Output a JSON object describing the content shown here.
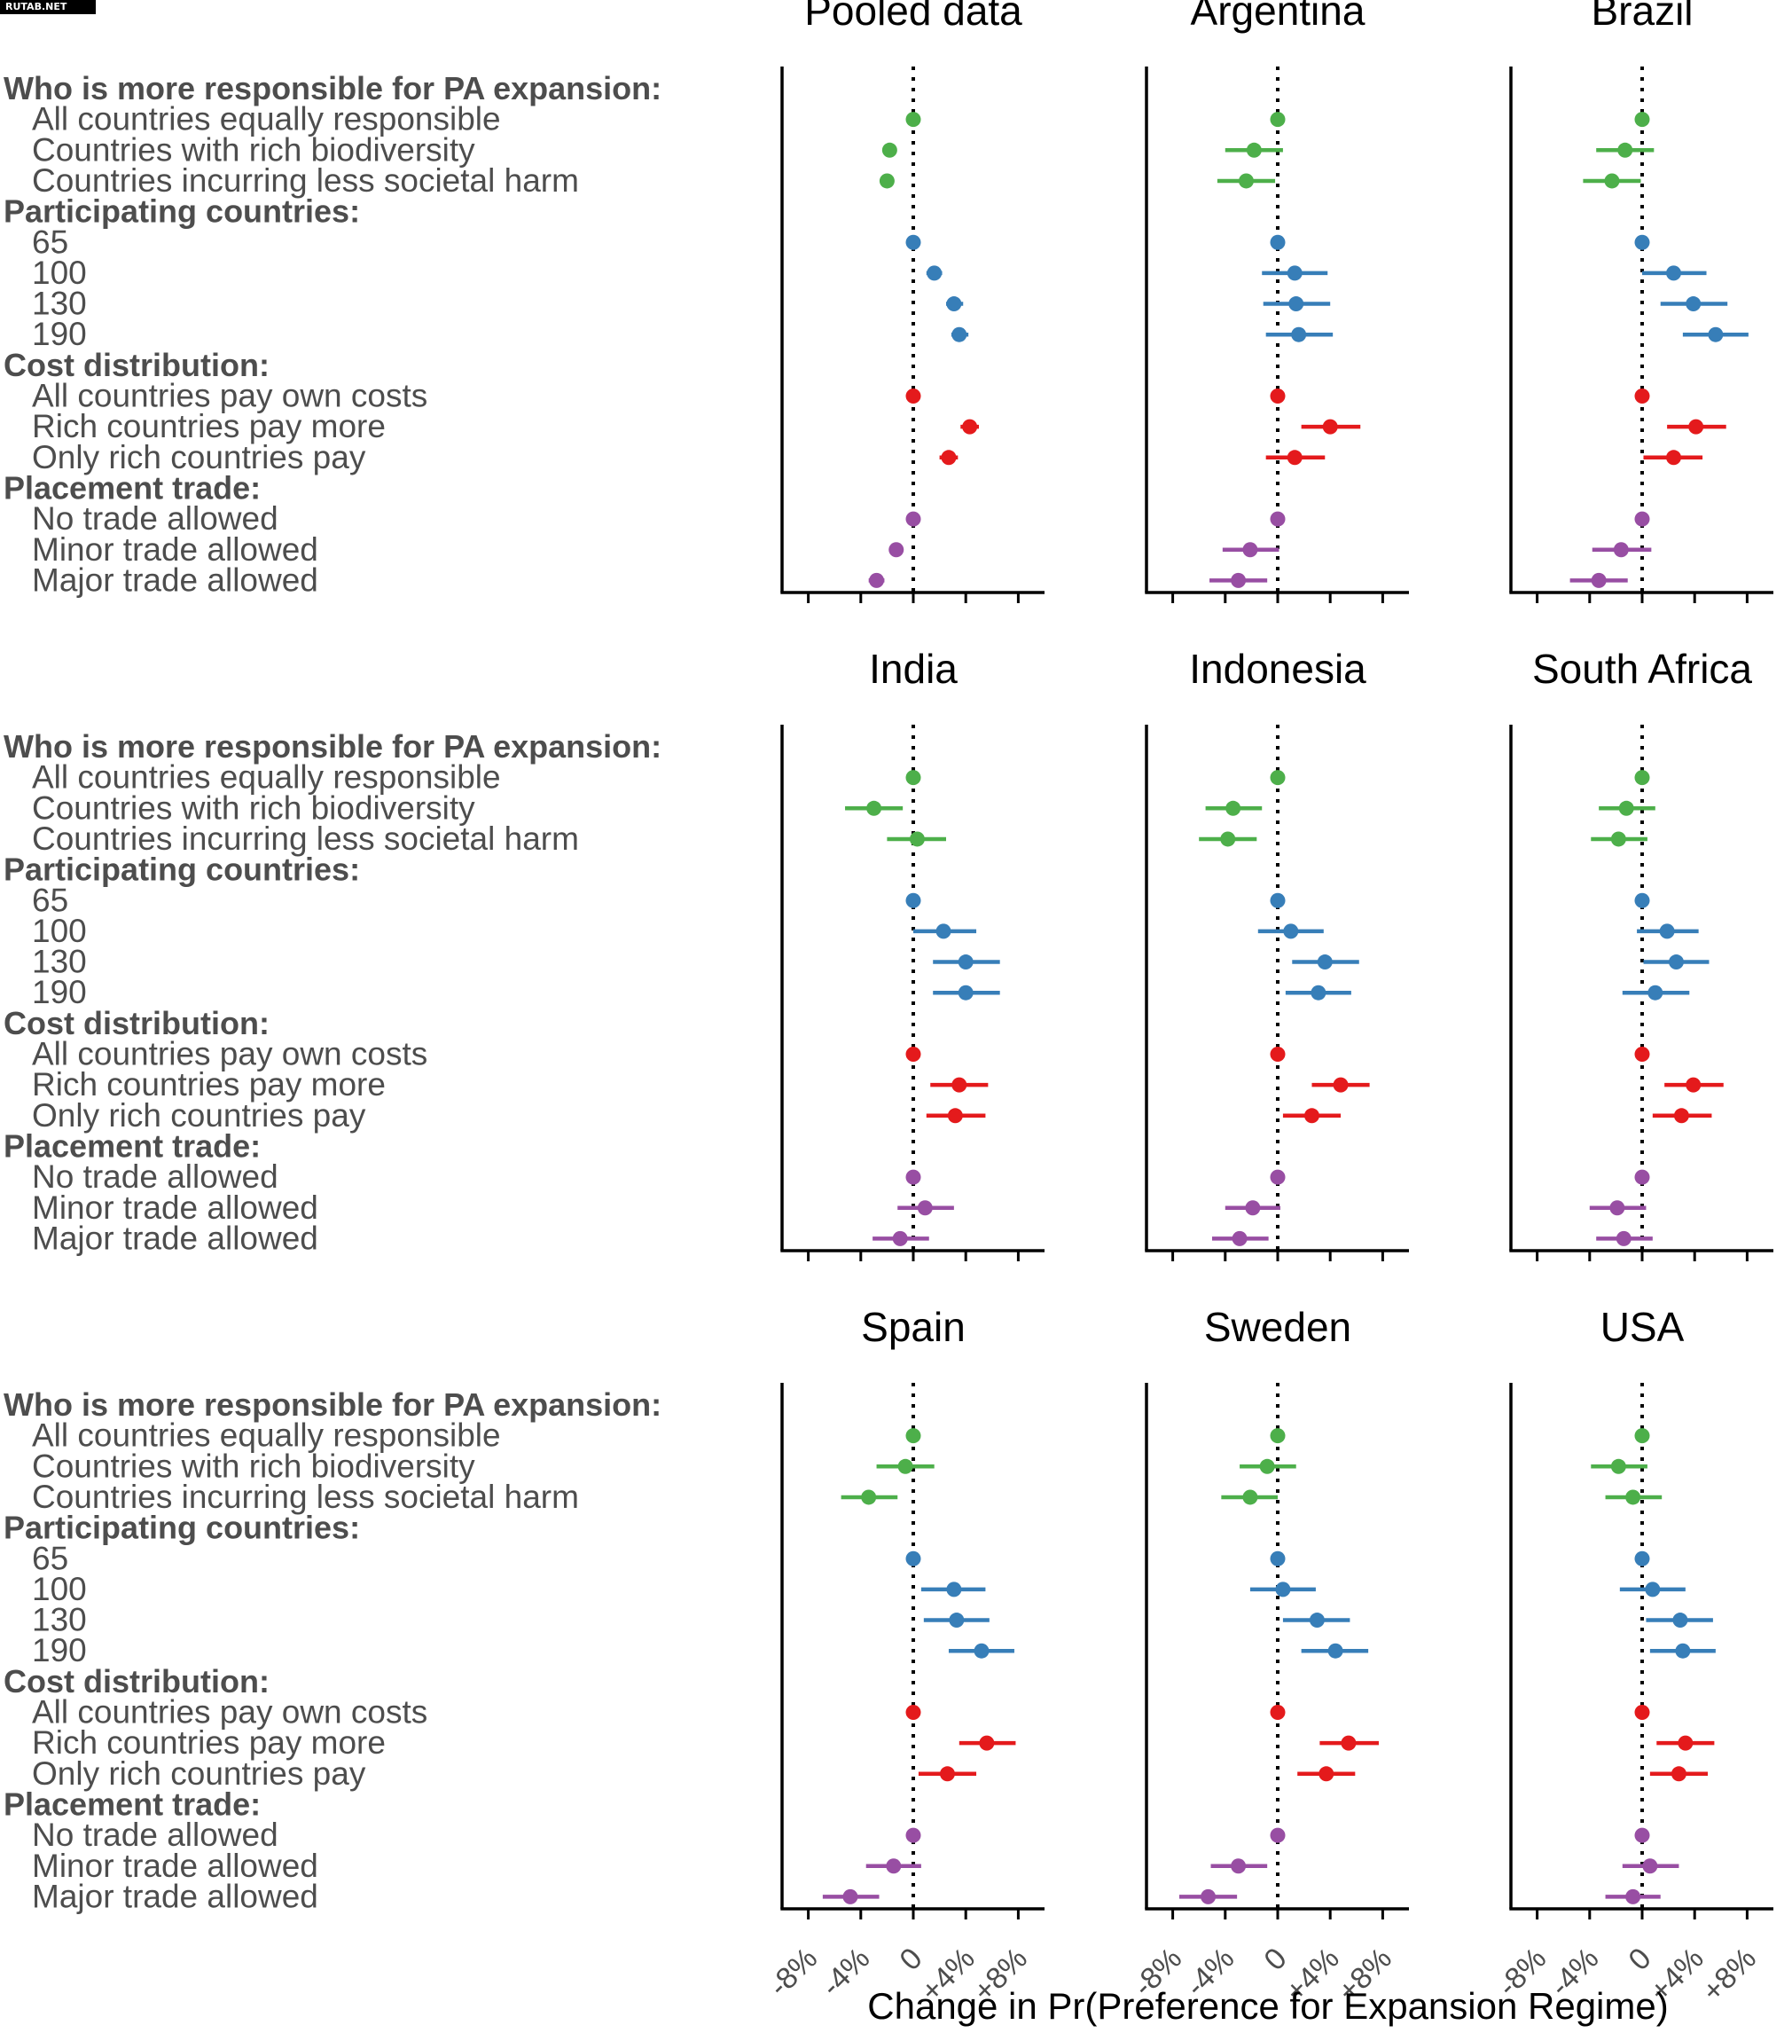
{
  "watermark": "RUTAB.NET",
  "chart_data": {
    "type": "dot-whisker (coefficient plot)",
    "x_axis_label": "Change in Pr(Preference for Expansion Regime)",
    "x_ticks": [
      "-8%",
      "-4%",
      "0",
      "+4%",
      "+8%"
    ],
    "x_tick_values": [
      -8,
      -4,
      0,
      4,
      8
    ],
    "x_range": [
      -10,
      10
    ],
    "reference_line": 0,
    "row_labels": [
      {
        "text": "Who is more responsible for PA expansion:",
        "header": true
      },
      {
        "text": "All countries equally responsible",
        "group": "responsibility"
      },
      {
        "text": "Countries with rich biodiversity",
        "group": "responsibility"
      },
      {
        "text": "Countries incurring less societal harm",
        "group": "responsibility"
      },
      {
        "text": "Participating countries:",
        "header": true
      },
      {
        "text": "65",
        "group": "participation"
      },
      {
        "text": "100",
        "group": "participation"
      },
      {
        "text": "130",
        "group": "participation"
      },
      {
        "text": "190",
        "group": "participation"
      },
      {
        "text": "Cost distribution:",
        "header": true
      },
      {
        "text": "All countries pay own costs",
        "group": "cost"
      },
      {
        "text": "Rich countries pay more",
        "group": "cost"
      },
      {
        "text": "Only rich countries pay",
        "group": "cost"
      },
      {
        "text": "Placement trade:",
        "header": true
      },
      {
        "text": "No trade allowed",
        "group": "trade"
      },
      {
        "text": "Minor trade allowed",
        "group": "trade"
      },
      {
        "text": "Major trade allowed",
        "group": "trade"
      }
    ],
    "group_colors": {
      "responsibility": "#4daf4a",
      "participation": "#377eb8",
      "cost": "#e41a1c",
      "trade": "#984ea3"
    },
    "panels": [
      {
        "title": "Pooled data",
        "estimates": [
          [
            0,
            0,
            0
          ],
          [
            -1.8,
            -2.2,
            -1.4
          ],
          [
            -2.0,
            -2.5,
            -1.6
          ],
          [
            0,
            0,
            0
          ],
          [
            1.6,
            1.0,
            2.2
          ],
          [
            3.1,
            2.5,
            3.8
          ],
          [
            3.5,
            2.9,
            4.2
          ],
          [
            0,
            0,
            0
          ],
          [
            4.3,
            3.6,
            5.0
          ],
          [
            2.7,
            2.0,
            3.4
          ],
          [
            0,
            0,
            0
          ],
          [
            -1.3,
            -1.8,
            -0.8
          ],
          [
            -2.8,
            -3.4,
            -2.2
          ]
        ]
      },
      {
        "title": "Argentina",
        "estimates": [
          [
            0,
            0,
            0
          ],
          [
            -1.8,
            -4.0,
            0.4
          ],
          [
            -2.4,
            -4.6,
            -0.2
          ],
          [
            0,
            0,
            0
          ],
          [
            1.3,
            -1.2,
            3.8
          ],
          [
            1.4,
            -1.1,
            4.0
          ],
          [
            1.6,
            -0.9,
            4.2
          ],
          [
            0,
            0,
            0
          ],
          [
            4.0,
            1.8,
            6.3
          ],
          [
            1.3,
            -0.9,
            3.6
          ],
          [
            0,
            0,
            0
          ],
          [
            -2.1,
            -4.2,
            0.1
          ],
          [
            -3.0,
            -5.2,
            -0.8
          ]
        ]
      },
      {
        "title": "Brazil",
        "estimates": [
          [
            0,
            0,
            0
          ],
          [
            -1.3,
            -3.5,
            0.9
          ],
          [
            -2.3,
            -4.5,
            -0.1
          ],
          [
            0,
            0,
            0
          ],
          [
            2.4,
            0.0,
            4.9
          ],
          [
            3.9,
            1.4,
            6.5
          ],
          [
            5.6,
            3.1,
            8.1
          ],
          [
            0,
            0,
            0
          ],
          [
            4.1,
            1.9,
            6.4
          ],
          [
            2.4,
            0.1,
            4.6
          ],
          [
            0,
            0,
            0
          ],
          [
            -1.6,
            -3.8,
            0.7
          ],
          [
            -3.3,
            -5.5,
            -1.1
          ]
        ]
      },
      {
        "title": "India",
        "estimates": [
          [
            0,
            0,
            0
          ],
          [
            -3.0,
            -5.2,
            -0.8
          ],
          [
            0.3,
            -2.0,
            2.5
          ],
          [
            0,
            0,
            0
          ],
          [
            2.3,
            0.0,
            4.8
          ],
          [
            4.0,
            1.5,
            6.6
          ],
          [
            4.0,
            1.5,
            6.6
          ],
          [
            0,
            0,
            0
          ],
          [
            3.5,
            1.3,
            5.7
          ],
          [
            3.2,
            1.0,
            5.5
          ],
          [
            0,
            0,
            0
          ],
          [
            0.9,
            -1.2,
            3.1
          ],
          [
            -1.0,
            -3.1,
            1.2
          ]
        ]
      },
      {
        "title": "Indonesia",
        "estimates": [
          [
            0,
            0,
            0
          ],
          [
            -3.4,
            -5.5,
            -1.2
          ],
          [
            -3.8,
            -6.0,
            -1.6
          ],
          [
            0,
            0,
            0
          ],
          [
            1.0,
            -1.5,
            3.5
          ],
          [
            3.6,
            1.1,
            6.2
          ],
          [
            3.1,
            0.6,
            5.6
          ],
          [
            0,
            0,
            0
          ],
          [
            4.8,
            2.6,
            7.0
          ],
          [
            2.6,
            0.4,
            4.8
          ],
          [
            0,
            0,
            0
          ],
          [
            -1.9,
            -4.0,
            0.2
          ],
          [
            -2.9,
            -5.0,
            -0.7
          ]
        ]
      },
      {
        "title": "South Africa",
        "estimates": [
          [
            0,
            0,
            0
          ],
          [
            -1.2,
            -3.3,
            1.0
          ],
          [
            -1.8,
            -3.9,
            0.4
          ],
          [
            0,
            0,
            0
          ],
          [
            1.9,
            -0.4,
            4.3
          ],
          [
            2.6,
            0.1,
            5.1
          ],
          [
            1.0,
            -1.5,
            3.6
          ],
          [
            0,
            0,
            0
          ],
          [
            3.9,
            1.7,
            6.2
          ],
          [
            3.0,
            0.8,
            5.3
          ],
          [
            0,
            0,
            0
          ],
          [
            -1.9,
            -4.0,
            0.3
          ],
          [
            -1.4,
            -3.5,
            0.8
          ]
        ]
      },
      {
        "title": "Spain",
        "estimates": [
          [
            0,
            0,
            0
          ],
          [
            -0.6,
            -2.8,
            1.6
          ],
          [
            -3.4,
            -5.5,
            -1.2
          ],
          [
            0,
            0,
            0
          ],
          [
            3.1,
            0.6,
            5.5
          ],
          [
            3.3,
            0.8,
            5.8
          ],
          [
            5.2,
            2.7,
            7.7
          ],
          [
            0,
            0,
            0
          ],
          [
            5.6,
            3.5,
            7.8
          ],
          [
            2.6,
            0.4,
            4.8
          ],
          [
            0,
            0,
            0
          ],
          [
            -1.5,
            -3.6,
            0.6
          ],
          [
            -4.8,
            -6.9,
            -2.6
          ]
        ]
      },
      {
        "title": "Sweden",
        "estimates": [
          [
            0,
            0,
            0
          ],
          [
            -0.8,
            -2.9,
            1.4
          ],
          [
            -2.1,
            -4.3,
            0.0
          ],
          [
            0,
            0,
            0
          ],
          [
            0.4,
            -2.1,
            2.9
          ],
          [
            3.0,
            0.4,
            5.5
          ],
          [
            4.4,
            1.8,
            6.9
          ],
          [
            0,
            0,
            0
          ],
          [
            5.4,
            3.2,
            7.7
          ],
          [
            3.7,
            1.5,
            5.9
          ],
          [
            0,
            0,
            0
          ],
          [
            -3.0,
            -5.1,
            -0.8
          ],
          [
            -5.3,
            -7.5,
            -3.1
          ]
        ]
      },
      {
        "title": "USA",
        "estimates": [
          [
            0,
            0,
            0
          ],
          [
            -1.8,
            -3.9,
            0.4
          ],
          [
            -0.7,
            -2.8,
            1.5
          ],
          [
            0,
            0,
            0
          ],
          [
            0.8,
            -1.7,
            3.3
          ],
          [
            2.9,
            0.3,
            5.4
          ],
          [
            3.1,
            0.6,
            5.6
          ],
          [
            0,
            0,
            0
          ],
          [
            3.3,
            1.1,
            5.5
          ],
          [
            2.8,
            0.6,
            5.0
          ],
          [
            0,
            0,
            0
          ],
          [
            0.6,
            -1.5,
            2.8
          ],
          [
            -0.7,
            -2.8,
            1.4
          ]
        ]
      }
    ]
  }
}
